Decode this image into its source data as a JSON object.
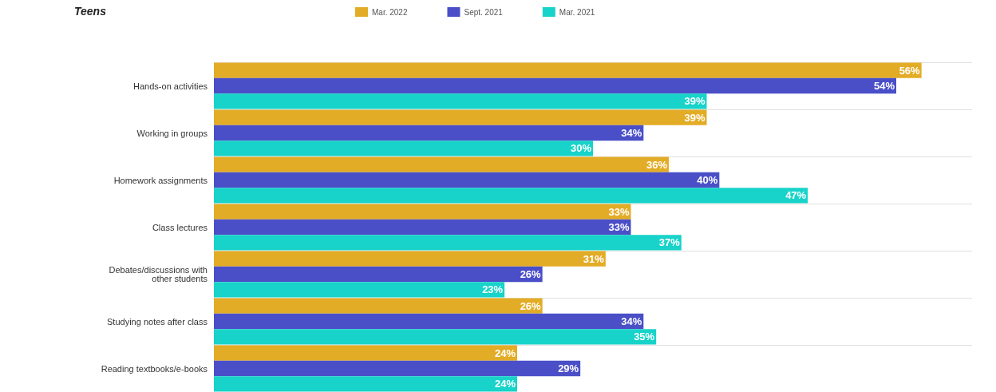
{
  "chart_data": {
    "type": "bar",
    "orientation": "horizontal",
    "title": "Teens",
    "categories": [
      "Hands-on activities",
      "Working in groups",
      "Homework assignments",
      "Class lectures",
      "Debates/discussions with\nother students",
      "Studying notes after class",
      "Reading textbooks/e-books"
    ],
    "series": [
      {
        "name": "Mar. 2022",
        "color": "#e3ac26",
        "values": [
          56,
          39,
          36,
          33,
          31,
          26,
          24
        ],
        "value_labels": [
          "56%",
          "39%",
          "36%",
          "33%",
          "31%",
          "26%",
          "24%"
        ]
      },
      {
        "name": "Sept. 2021",
        "color": "#4a4fc8",
        "values": [
          54,
          34,
          40,
          33,
          26,
          34,
          29
        ],
        "value_labels": [
          "54%",
          "34%",
          "40%",
          "33%",
          "26%",
          "34%",
          "29%"
        ]
      },
      {
        "name": "Mar. 2021",
        "color": "#17d3c9",
        "values": [
          39,
          30,
          47,
          37,
          23,
          35,
          24
        ],
        "value_labels": [
          "39%",
          "30%",
          "47%",
          "37%",
          "23%",
          "35%",
          "24%"
        ]
      }
    ],
    "grid": "y",
    "legend": "top"
  }
}
